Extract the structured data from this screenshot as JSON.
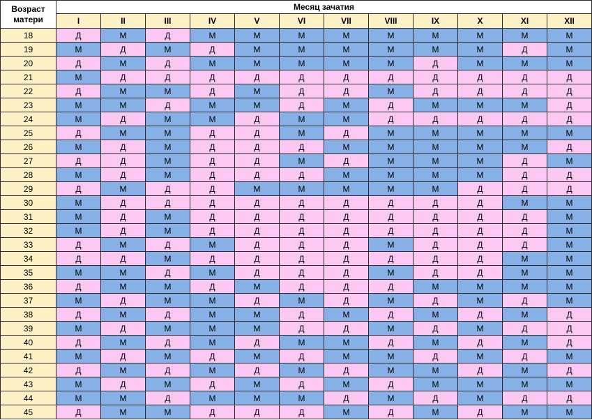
{
  "table": {
    "corner_label_line1": "Возраст",
    "corner_label_line2": "матери",
    "title": "Месяц зачатия",
    "months": [
      "I",
      "II",
      "III",
      "IV",
      "V",
      "VI",
      "VII",
      "VIII",
      "IX",
      "X",
      "XI",
      "XII"
    ],
    "colors": {
      "boy": "#87b1e6",
      "girl": "#fbc8f4",
      "header": "#fef1c6"
    },
    "rows": [
      {
        "age": "18",
        "cells": [
          "Д",
          "М",
          "Д",
          "М",
          "М",
          "М",
          "М",
          "М",
          "М",
          "М",
          "М",
          "М"
        ]
      },
      {
        "age": "19",
        "cells": [
          "М",
          "Д",
          "М",
          "Д",
          "М",
          "М",
          "М",
          "М",
          "М",
          "М",
          "Д",
          "М"
        ]
      },
      {
        "age": "20",
        "cells": [
          "Д",
          "М",
          "Д",
          "М",
          "М",
          "М",
          "М",
          "М",
          "Д",
          "М",
          "М",
          "М"
        ]
      },
      {
        "age": "21",
        "cells": [
          "М",
          "Д",
          "Д",
          "Д",
          "Д",
          "Д",
          "Д",
          "Д",
          "Д",
          "Д",
          "Д",
          "Д"
        ]
      },
      {
        "age": "22",
        "cells": [
          "Д",
          "М",
          "М",
          "Д",
          "М",
          "Д",
          "Д",
          "М",
          "Д",
          "Д",
          "Д",
          "Д"
        ]
      },
      {
        "age": "23",
        "cells": [
          "М",
          "М",
          "Д",
          "М",
          "М",
          "Д",
          "М",
          "Д",
          "М",
          "М",
          "М",
          "Д"
        ]
      },
      {
        "age": "24",
        "cells": [
          "М",
          "Д",
          "М",
          "М",
          "Д",
          "М",
          "М",
          "Д",
          "Д",
          "Д",
          "Д",
          "Д"
        ]
      },
      {
        "age": "25",
        "cells": [
          "Д",
          "М",
          "М",
          "Д",
          "Д",
          "М",
          "Д",
          "М",
          "М",
          "М",
          "М",
          "М"
        ]
      },
      {
        "age": "26",
        "cells": [
          "М",
          "Д",
          "М",
          "Д",
          "Д",
          "Д",
          "М",
          "М",
          "М",
          "М",
          "М",
          "Д"
        ]
      },
      {
        "age": "27",
        "cells": [
          "Д",
          "Д",
          "М",
          "Д",
          "Д",
          "М",
          "Д",
          "М",
          "М",
          "М",
          "Д",
          "М"
        ]
      },
      {
        "age": "28",
        "cells": [
          "М",
          "Д",
          "М",
          "Д",
          "Д",
          "Д",
          "М",
          "М",
          "М",
          "М",
          "Д",
          "Д"
        ]
      },
      {
        "age": "29",
        "cells": [
          "Д",
          "М",
          "Д",
          "Д",
          "М",
          "М",
          "М",
          "М",
          "М",
          "Д",
          "Д",
          "Д"
        ]
      },
      {
        "age": "30",
        "cells": [
          "М",
          "Д",
          "Д",
          "Д",
          "Д",
          "Д",
          "Д",
          "Д",
          "Д",
          "Д",
          "М",
          "М"
        ]
      },
      {
        "age": "31",
        "cells": [
          "М",
          "Д",
          "М",
          "Д",
          "Д",
          "Д",
          "Д",
          "Д",
          "Д",
          "Д",
          "Д",
          "М"
        ]
      },
      {
        "age": "32",
        "cells": [
          "М",
          "Д",
          "М",
          "Д",
          "Д",
          "Д",
          "Д",
          "Д",
          "Д",
          "Д",
          "Д",
          "М"
        ]
      },
      {
        "age": "33",
        "cells": [
          "Д",
          "М",
          "Д",
          "М",
          "Д",
          "Д",
          "Д",
          "М",
          "Д",
          "Д",
          "Д",
          "М"
        ]
      },
      {
        "age": "34",
        "cells": [
          "Д",
          "Д",
          "М",
          "Д",
          "Д",
          "Д",
          "Д",
          "Д",
          "Д",
          "Д",
          "М",
          "М"
        ]
      },
      {
        "age": "35",
        "cells": [
          "М",
          "М",
          "Д",
          "М",
          "Д",
          "Д",
          "Д",
          "М",
          "Д",
          "Д",
          "М",
          "М"
        ]
      },
      {
        "age": "36",
        "cells": [
          "Д",
          "М",
          "М",
          "Д",
          "М",
          "Д",
          "Д",
          "Д",
          "М",
          "М",
          "М",
          "М"
        ]
      },
      {
        "age": "37",
        "cells": [
          "М",
          "Д",
          "М",
          "М",
          "Д",
          "М",
          "Д",
          "М",
          "Д",
          "М",
          "Д",
          "М"
        ]
      },
      {
        "age": "38",
        "cells": [
          "Д",
          "М",
          "Д",
          "М",
          "М",
          "Д",
          "М",
          "Д",
          "М",
          "Д",
          "М",
          "Д"
        ]
      },
      {
        "age": "39",
        "cells": [
          "М",
          "Д",
          "М",
          "М",
          "М",
          "Д",
          "Д",
          "М",
          "Д",
          "М",
          "Д",
          "Д"
        ]
      },
      {
        "age": "40",
        "cells": [
          "Д",
          "М",
          "Д",
          "М",
          "Д",
          "М",
          "М",
          "Д",
          "М",
          "Д",
          "М",
          "Д"
        ]
      },
      {
        "age": "41",
        "cells": [
          "М",
          "Д",
          "М",
          "Д",
          "М",
          "Д",
          "М",
          "М",
          "Д",
          "М",
          "Д",
          "М"
        ]
      },
      {
        "age": "42",
        "cells": [
          "Д",
          "М",
          "Д",
          "М",
          "Д",
          "М",
          "Д",
          "М",
          "М",
          "Д",
          "М",
          "Д"
        ]
      },
      {
        "age": "43",
        "cells": [
          "М",
          "Д",
          "М",
          "Д",
          "М",
          "Д",
          "М",
          "Д",
          "М",
          "М",
          "М",
          "М"
        ]
      },
      {
        "age": "44",
        "cells": [
          "М",
          "М",
          "Д",
          "М",
          "М",
          "М",
          "Д",
          "М",
          "Д",
          "М",
          "Д",
          "Д"
        ]
      },
      {
        "age": "45",
        "cells": [
          "Д",
          "М",
          "М",
          "Д",
          "Д",
          "Д",
          "М",
          "Д",
          "М",
          "Д",
          "М",
          "М"
        ]
      }
    ]
  }
}
